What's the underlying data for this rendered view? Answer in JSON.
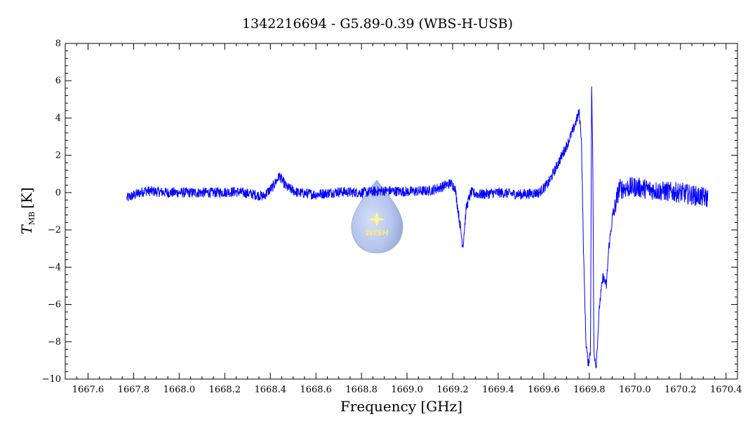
{
  "chart_data": {
    "type": "line",
    "title": "1342216694 - G5.89-0.39 (WBS-H-USB)",
    "xlabel": "Frequency [GHz]",
    "ylabel_main": "T",
    "ylabel_sub": "MB",
    "ylabel_unit": "[K]",
    "xlim": [
      1667.5,
      1670.45
    ],
    "ylim": [
      -10,
      8
    ],
    "xticks": [
      1667.6,
      1667.8,
      1668.0,
      1668.2,
      1668.4,
      1668.6,
      1668.8,
      1669.0,
      1669.2,
      1669.4,
      1669.6,
      1669.8,
      1670.0,
      1670.2,
      1670.4
    ],
    "xtick_labels": [
      "1667.6",
      "1667.8",
      "1668.0",
      "1668.2",
      "1668.4",
      "1668.6",
      "1668.8",
      "1669.0",
      "1669.2",
      "1669.4",
      "1669.6",
      "1669.8",
      "1670.0",
      "1670.2",
      "1670.4"
    ],
    "yticks": [
      -10,
      -8,
      -6,
      -4,
      -2,
      0,
      2,
      4,
      6,
      8
    ],
    "ytick_labels": [
      "−10",
      "−8",
      "−6",
      "−4",
      "−2",
      "0",
      "2",
      "4",
      "6",
      "8"
    ],
    "grid": false,
    "series": [
      {
        "color": "#0000ff",
        "x": [
          1667.77,
          1667.85,
          1667.95,
          1668.05,
          1668.15,
          1668.25,
          1668.33,
          1668.37,
          1668.41,
          1668.44,
          1668.47,
          1668.52,
          1668.6,
          1668.7,
          1668.8,
          1668.9,
          1669.0,
          1669.1,
          1669.15,
          1669.19,
          1669.21,
          1669.23,
          1669.245,
          1669.26,
          1669.28,
          1669.32,
          1669.4,
          1669.5,
          1669.58,
          1669.62,
          1669.66,
          1669.7,
          1669.73,
          1669.755,
          1669.765,
          1669.775,
          1669.785,
          1669.795,
          1669.805,
          1669.81,
          1669.815,
          1669.82,
          1669.83,
          1669.845,
          1669.86,
          1669.875,
          1669.885,
          1669.9,
          1669.93,
          1670.0,
          1670.1,
          1670.2,
          1670.32
        ],
        "y": [
          -0.3,
          0.1,
          0.0,
          0.0,
          0.0,
          0.05,
          -0.1,
          -0.2,
          0.3,
          0.9,
          0.3,
          0.0,
          -0.1,
          0.05,
          0.0,
          0.1,
          0.05,
          0.1,
          0.3,
          0.5,
          0.3,
          -1.5,
          -2.9,
          -0.8,
          0.0,
          -0.1,
          0.0,
          -0.1,
          0.0,
          0.5,
          1.5,
          2.5,
          3.4,
          4.3,
          3.0,
          -3.5,
          -8.0,
          -9.2,
          -8.5,
          5.7,
          2.0,
          -8.5,
          -9.3,
          -6.0,
          -4.5,
          -5.0,
          -3.0,
          -1.5,
          0.2,
          0.3,
          0.1,
          0.0,
          -0.3
        ]
      }
    ]
  },
  "watermark": {
    "text": "WISH"
  }
}
